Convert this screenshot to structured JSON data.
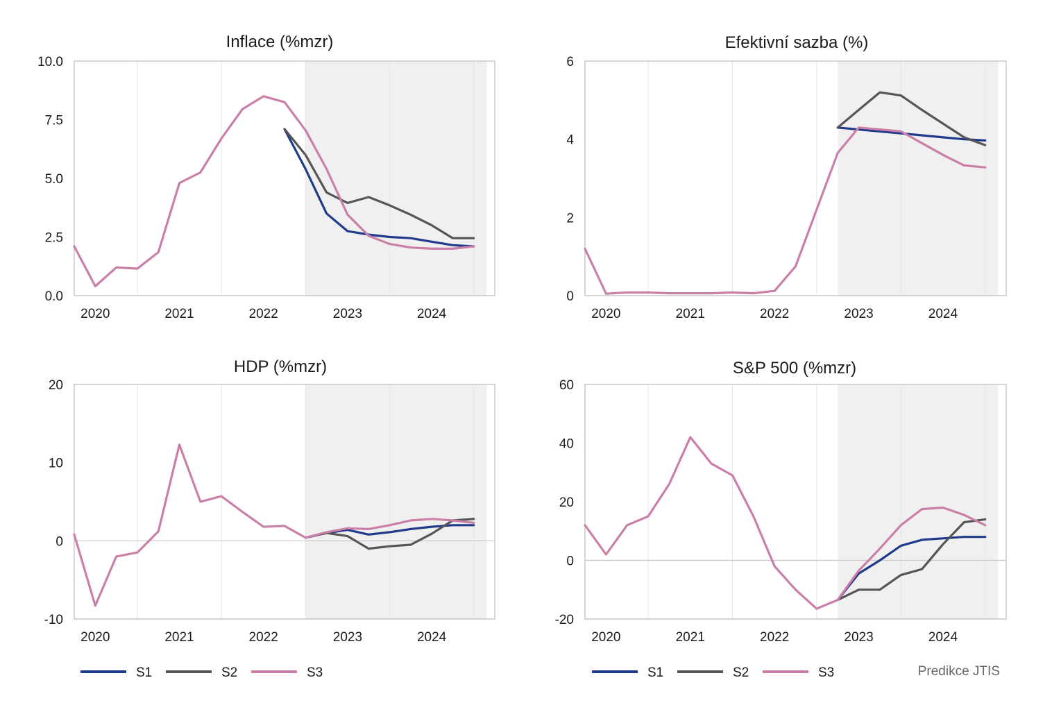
{
  "colors": {
    "S1": "#1f3a8a",
    "S2": "#555555",
    "S3": "#c97fa8",
    "forecast_shade": "#f0f0f0"
  },
  "legend": [
    {
      "key": "S1",
      "label": "S1"
    },
    {
      "key": "S2",
      "label": "S2"
    },
    {
      "key": "S3",
      "label": "S3"
    }
  ],
  "note": "Predikce JTIS",
  "chart_data": [
    {
      "type": "line",
      "title": "Inflace (%mzr)",
      "x_labels": [
        "2020",
        "2021",
        "2022",
        "2023",
        "2024"
      ],
      "x_range": [
        2019.75,
        2024.75
      ],
      "y_range": [
        0,
        10
      ],
      "y_ticks": [
        "0.0",
        "2.5",
        "5.0",
        "7.5",
        "10.0"
      ],
      "forecast_start": 2022.5,
      "series": [
        {
          "name": "S1",
          "x": [
            2022.25,
            2022.5,
            2022.75,
            2023.0,
            2023.25,
            2023.5,
            2023.75,
            2024.0,
            2024.25,
            2024.5
          ],
          "y": [
            7.1,
            5.4,
            3.5,
            2.75,
            2.6,
            2.5,
            2.45,
            2.3,
            2.15,
            2.1
          ]
        },
        {
          "name": "S2",
          "x": [
            2022.25,
            2022.5,
            2022.75,
            2023.0,
            2023.25,
            2023.5,
            2023.75,
            2024.0,
            2024.25,
            2024.5
          ],
          "y": [
            7.1,
            6.0,
            4.4,
            3.95,
            4.2,
            3.85,
            3.45,
            3.0,
            2.45,
            2.45
          ]
        },
        {
          "name": "S3",
          "x": [
            2019.75,
            2020.0,
            2020.25,
            2020.5,
            2020.75,
            2021.0,
            2021.25,
            2021.5,
            2021.75,
            2022.0,
            2022.25,
            2022.5,
            2022.75,
            2023.0,
            2023.25,
            2023.5,
            2023.75,
            2024.0,
            2024.25,
            2024.5
          ],
          "y": [
            2.1,
            0.4,
            1.2,
            1.15,
            1.85,
            4.8,
            5.25,
            6.7,
            7.95,
            8.5,
            8.25,
            7.05,
            5.4,
            3.45,
            2.55,
            2.2,
            2.05,
            2.0,
            2.0,
            2.1
          ]
        }
      ]
    },
    {
      "type": "line",
      "title": "Efektivní sazba (%)",
      "x_labels": [
        "2020",
        "2021",
        "2022",
        "2023",
        "2024"
      ],
      "x_range": [
        2019.75,
        2024.75
      ],
      "y_range": [
        0,
        6
      ],
      "y_ticks": [
        "0",
        "2",
        "4",
        "6"
      ],
      "forecast_start": 2022.75,
      "series": [
        {
          "name": "S1",
          "x": [
            2022.75,
            2023.0,
            2023.25,
            2023.5,
            2023.75,
            2024.0,
            2024.25,
            2024.5
          ],
          "y": [
            4.3,
            4.25,
            4.2,
            4.15,
            4.1,
            4.05,
            4.0,
            3.97
          ]
        },
        {
          "name": "S2",
          "x": [
            2022.75,
            2023.0,
            2023.25,
            2023.5,
            2023.75,
            2024.0,
            2024.25,
            2024.5
          ],
          "y": [
            4.3,
            4.75,
            5.2,
            5.12,
            4.75,
            4.4,
            4.05,
            3.85
          ]
        },
        {
          "name": "S3",
          "x": [
            2019.75,
            2020.0,
            2020.25,
            2020.5,
            2020.75,
            2021.0,
            2021.25,
            2021.5,
            2021.75,
            2022.0,
            2022.25,
            2022.5,
            2022.75,
            2023.0,
            2023.25,
            2023.5,
            2023.75,
            2024.0,
            2024.25,
            2024.5
          ],
          "y": [
            1.2,
            0.05,
            0.08,
            0.08,
            0.06,
            0.06,
            0.06,
            0.08,
            0.06,
            0.12,
            0.75,
            2.2,
            3.65,
            4.3,
            4.25,
            4.2,
            3.9,
            3.6,
            3.33,
            3.28
          ]
        }
      ]
    },
    {
      "type": "line",
      "title": "HDP (%mzr)",
      "x_labels": [
        "2020",
        "2021",
        "2022",
        "2023",
        "2024"
      ],
      "x_range": [
        2019.75,
        2024.75
      ],
      "y_range": [
        -10,
        20
      ],
      "y_ticks": [
        "-10",
        "0",
        "10",
        "20"
      ],
      "forecast_start": 2022.5,
      "series": [
        {
          "name": "S1",
          "x": [
            2022.5,
            2022.75,
            2023.0,
            2023.25,
            2023.5,
            2023.75,
            2024.0,
            2024.25,
            2024.5
          ],
          "y": [
            0.4,
            1.0,
            1.4,
            0.8,
            1.1,
            1.5,
            1.8,
            2.0,
            2.0
          ]
        },
        {
          "name": "S2",
          "x": [
            2022.5,
            2022.75,
            2023.0,
            2023.25,
            2023.5,
            2023.75,
            2024.0,
            2024.25,
            2024.5
          ],
          "y": [
            0.4,
            1.0,
            0.6,
            -1.0,
            -0.7,
            -0.5,
            0.9,
            2.6,
            2.8
          ]
        },
        {
          "name": "S3",
          "x": [
            2019.75,
            2020.0,
            2020.25,
            2020.5,
            2020.75,
            2021.0,
            2021.25,
            2021.5,
            2021.75,
            2022.0,
            2022.25,
            2022.5,
            2022.75,
            2023.0,
            2023.25,
            2023.5,
            2023.75,
            2024.0,
            2024.25,
            2024.5
          ],
          "y": [
            0.8,
            -8.3,
            -2.0,
            -1.5,
            1.2,
            12.3,
            5.0,
            5.7,
            3.7,
            1.8,
            1.9,
            0.4,
            1.1,
            1.6,
            1.5,
            2.0,
            2.6,
            2.8,
            2.6,
            2.3
          ]
        }
      ]
    },
    {
      "type": "line",
      "title": "S&P 500 (%mzr)",
      "x_labels": [
        "2020",
        "2021",
        "2022",
        "2023",
        "2024"
      ],
      "x_range": [
        2019.75,
        2024.75
      ],
      "y_range": [
        -20,
        60
      ],
      "y_ticks": [
        "-20",
        "0",
        "20",
        "40",
        "60"
      ],
      "forecast_start": 2022.75,
      "series": [
        {
          "name": "S1",
          "x": [
            2022.75,
            2023.0,
            2023.25,
            2023.5,
            2023.75,
            2024.0,
            2024.25,
            2024.5
          ],
          "y": [
            -13.5,
            -4.5,
            0.0,
            5.0,
            7.0,
            7.5,
            8.0,
            8.0
          ]
        },
        {
          "name": "S2",
          "x": [
            2022.75,
            2023.0,
            2023.25,
            2023.5,
            2023.75,
            2024.0,
            2024.25,
            2024.5
          ],
          "y": [
            -13.5,
            -10.0,
            -10.0,
            -5.0,
            -3.0,
            5.5,
            13.0,
            14.0
          ]
        },
        {
          "name": "S3",
          "x": [
            2019.75,
            2020.0,
            2020.25,
            2020.5,
            2020.75,
            2021.0,
            2021.25,
            2021.5,
            2021.75,
            2022.0,
            2022.25,
            2022.5,
            2022.75,
            2023.0,
            2023.25,
            2023.5,
            2023.75,
            2024.0,
            2024.25,
            2024.5
          ],
          "y": [
            12.0,
            2.0,
            12.0,
            15.0,
            26.0,
            42.0,
            33.0,
            29.0,
            15.0,
            -2.0,
            -10.0,
            -16.5,
            -13.5,
            -3.5,
            4.0,
            12.0,
            17.5,
            18.0,
            15.5,
            12.0
          ]
        }
      ]
    }
  ]
}
